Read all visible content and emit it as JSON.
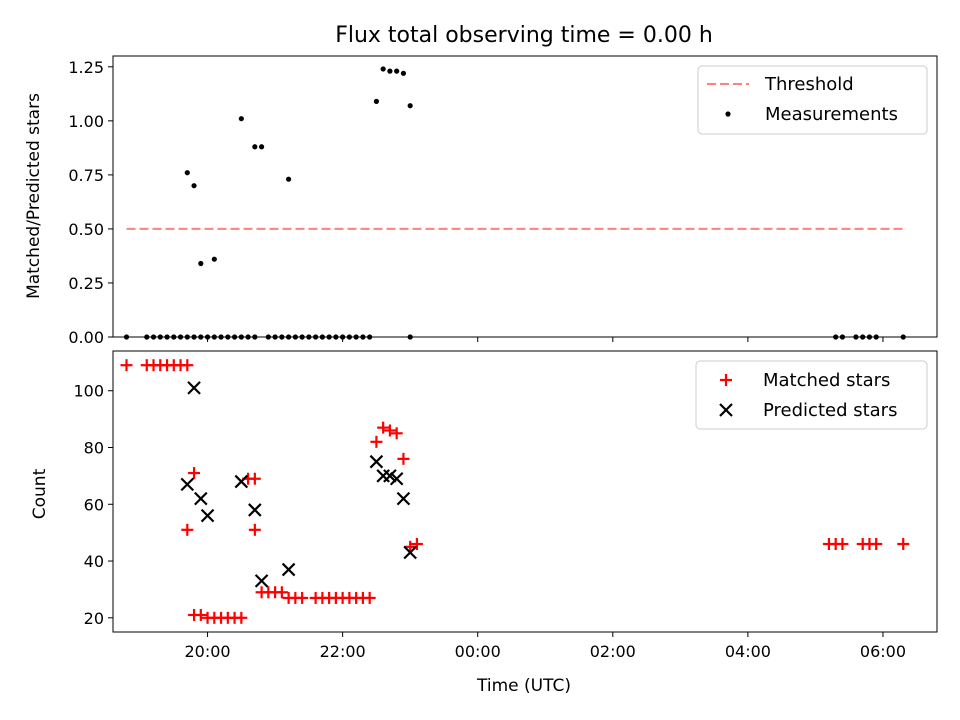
{
  "chart_data": {
    "type": "scatter",
    "title": "Flux total observing time = 0.00 h",
    "xlabel": "Time (UTC)",
    "x_ticks": [
      "20:00",
      "22:00",
      "00:00",
      "02:00",
      "04:00",
      "06:00"
    ],
    "x_range": [
      "18:36",
      "06:48 (+1d)"
    ],
    "top_panel": {
      "ylabel": "Matched/Predicted stars",
      "ylim": [
        0,
        1.3
      ],
      "y_ticks": [
        "0.00",
        "0.25",
        "0.50",
        "0.75",
        "1.00",
        "1.25"
      ],
      "legend_position": "upper right",
      "threshold": {
        "name": "Threshold",
        "value": 0.5,
        "x_start": "18:48",
        "x_end": "06:18",
        "color": "#ff8080",
        "style": "dashed"
      },
      "measurements": {
        "name": "Measurements",
        "color": "#000000",
        "x": [
          "18:48",
          "19:06",
          "19:12",
          "19:18",
          "19:24",
          "19:30",
          "19:36",
          "19:42",
          "19:48",
          "19:54",
          "20:00",
          "20:06",
          "20:12",
          "20:18",
          "20:24",
          "20:30",
          "20:36",
          "20:42",
          "20:54",
          "21:00",
          "21:06",
          "21:12",
          "21:18",
          "21:24",
          "21:30",
          "21:36",
          "21:42",
          "21:48",
          "21:54",
          "22:00",
          "22:06",
          "22:12",
          "22:18",
          "22:24",
          "23:00",
          "05:18",
          "05:24",
          "05:36",
          "05:42",
          "05:48",
          "05:54",
          "06:18",
          "19:42",
          "19:48",
          "19:54",
          "20:06",
          "20:30",
          "20:42",
          "20:48",
          "21:12",
          "22:30",
          "22:36",
          "22:42",
          "22:48",
          "22:54",
          "23:00"
        ],
        "y": [
          0,
          0,
          0,
          0,
          0,
          0,
          0,
          0,
          0,
          0,
          0,
          0,
          0,
          0,
          0,
          0,
          0,
          0,
          0,
          0,
          0,
          0,
          0,
          0,
          0,
          0,
          0,
          0,
          0,
          0,
          0,
          0,
          0,
          0,
          0,
          0,
          0,
          0,
          0,
          0,
          0,
          0,
          0.76,
          0.7,
          0.34,
          0.36,
          1.01,
          0.88,
          0.88,
          0.73,
          1.09,
          1.24,
          1.23,
          1.23,
          1.22,
          1.07
        ]
      }
    },
    "bottom_panel": {
      "ylabel": "Count",
      "ylim": [
        15,
        114
      ],
      "y_ticks": [
        "20",
        "40",
        "60",
        "80",
        "100"
      ],
      "legend_position": "upper right",
      "series": [
        {
          "name": "Matched stars",
          "color": "#ff0000",
          "marker": "plus",
          "x": [
            "18:48",
            "19:06",
            "19:12",
            "19:18",
            "19:24",
            "19:30",
            "19:36",
            "19:42",
            "19:48",
            "19:54",
            "20:00",
            "20:06",
            "20:12",
            "20:18",
            "20:24",
            "20:30",
            "19:42",
            "19:48",
            "20:36",
            "20:42",
            "20:42",
            "20:48",
            "20:54",
            "21:00",
            "21:06",
            "21:12",
            "21:18",
            "21:24",
            "21:36",
            "21:42",
            "21:48",
            "21:54",
            "22:00",
            "22:06",
            "22:12",
            "22:18",
            "22:24",
            "22:30",
            "22:36",
            "22:42",
            "22:48",
            "22:54",
            "23:00",
            "23:06",
            "05:12",
            "05:18",
            "05:24",
            "05:42",
            "05:48",
            "05:54",
            "06:18"
          ],
          "y": [
            109,
            109,
            109,
            109,
            109,
            109,
            109,
            109,
            21,
            21,
            20,
            20,
            20,
            20,
            20,
            20,
            51,
            71,
            69,
            69,
            51,
            29,
            29,
            29,
            29,
            27,
            27,
            27,
            27,
            27,
            27,
            27,
            27,
            27,
            27,
            27,
            27,
            82,
            87,
            86,
            85,
            76,
            45,
            46,
            46,
            46,
            46,
            46,
            46,
            46,
            46
          ]
        },
        {
          "name": "Predicted stars",
          "color": "#000000",
          "marker": "x",
          "x": [
            "19:42",
            "19:48",
            "19:54",
            "20:00",
            "20:30",
            "20:42",
            "20:48",
            "21:12",
            "22:30",
            "22:36",
            "22:42",
            "22:48",
            "22:54",
            "23:00"
          ],
          "y": [
            67,
            101,
            62,
            56,
            68,
            58,
            33,
            37,
            75,
            70,
            70,
            69,
            62,
            43
          ]
        }
      ]
    }
  }
}
